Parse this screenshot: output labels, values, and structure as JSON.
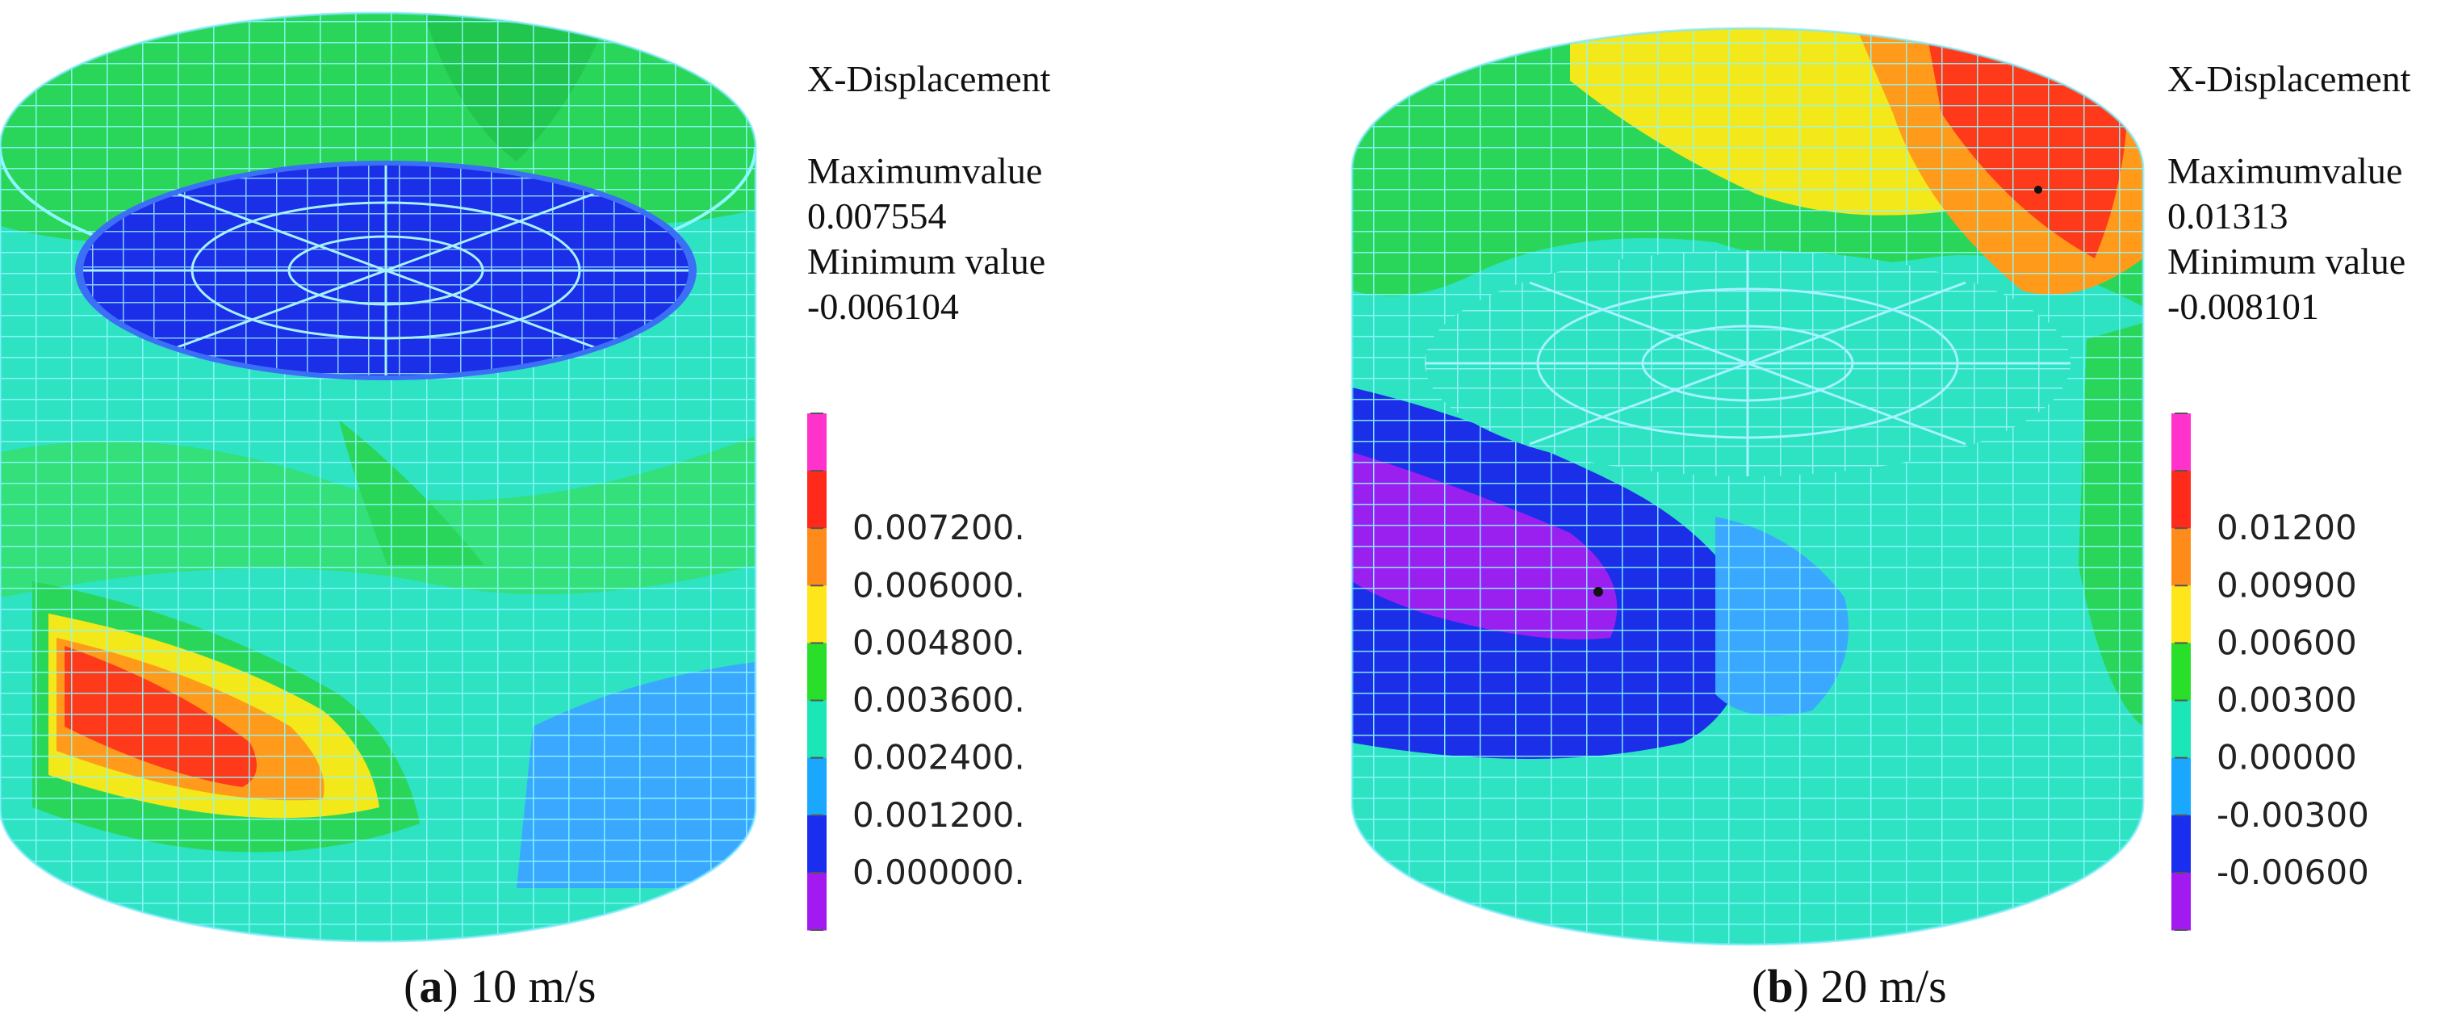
{
  "panels": [
    {
      "id": "a",
      "info": {
        "title": "X-Displacement",
        "max_label": "Maximumvalue",
        "max_value": "0.007554",
        "min_label": "Minimum value",
        "min_value": "-0.006104"
      },
      "legend": {
        "colors": [
          "#ff33cc",
          "#ff2a1a",
          "#ff8c1a",
          "#ffe61a",
          "#2adf2a",
          "#1ae6b8",
          "#1aa8ff",
          "#1a2ef0",
          "#a21af0"
        ],
        "labels": [
          "0.007200.",
          "0.006000.",
          "0.004800.",
          "0.003600.",
          "0.002400.",
          "0.001200.",
          "0.000000."
        ]
      },
      "caption": {
        "letter": "a",
        "text": "10 m/s"
      }
    },
    {
      "id": "b",
      "info": {
        "title": "X-Displacement",
        "max_label": "Maximumvalue",
        "max_value": "0.01313",
        "min_label": "Minimum value",
        "min_value": "-0.008101"
      },
      "legend": {
        "colors": [
          "#ff33cc",
          "#ff2a1a",
          "#ff8c1a",
          "#ffe61a",
          "#2adf2a",
          "#1ae6b8",
          "#1aa8ff",
          "#1a2ef0",
          "#a21af0"
        ],
        "labels": [
          "0.01200",
          "0.00900",
          "0.00600",
          "0.00300",
          "0.00000",
          "-0.00300",
          "-0.00600"
        ]
      },
      "caption": {
        "letter": "b",
        "text": "20 m/s"
      }
    }
  ]
}
